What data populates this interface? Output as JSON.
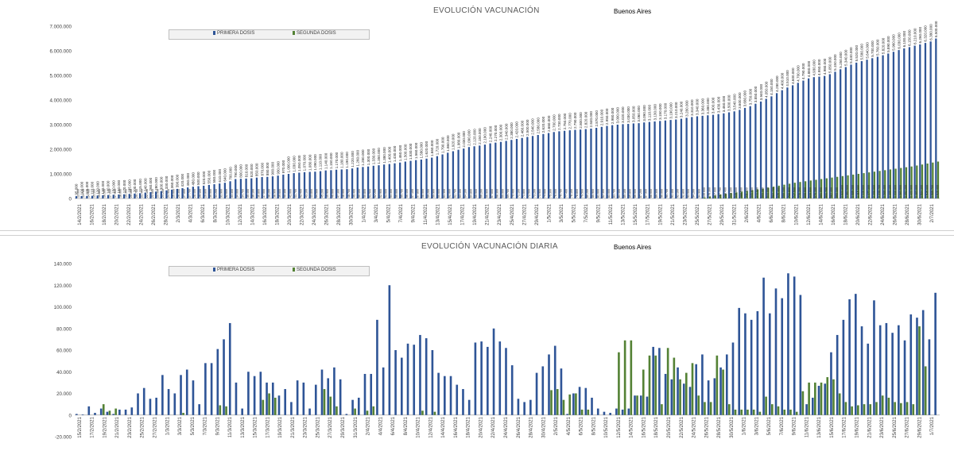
{
  "chart_data": [
    {
      "type": "bar",
      "title": "EVOLUCIÓN VACUNACIÓN",
      "subtitle": "Buenos Aires",
      "ylim": [
        0,
        7000000
      ],
      "yticks": [
        "0",
        "1.000.000",
        "2.000.000",
        "3.000.000",
        "4.000.000",
        "5.000.000",
        "6.000.000",
        "7.000.000"
      ],
      "x_start": "2021-02-14",
      "x_end": "2021-07-02",
      "xtick_labels": [
        "14/2/2021",
        "16/2/2021",
        "18/2/2021",
        "20/2/2021",
        "22/2/2021",
        "24/2/2021",
        "26/2/2021",
        "28/2/2021",
        "2/3/2021",
        "4/3/2021",
        "6/3/2021",
        "8/3/2021",
        "10/3/2021",
        "12/3/2021",
        "14/3/2021",
        "16/3/2021",
        "18/3/2021",
        "20/3/2021",
        "22/3/2021",
        "24/3/2021",
        "26/3/2021",
        "28/3/2021",
        "30/3/2021",
        "1/4/2021",
        "3/4/2021",
        "5/4/2021",
        "7/4/2021",
        "9/4/2021",
        "11/4/2021",
        "13/4/2021",
        "15/4/2021",
        "17/4/2021",
        "19/4/2021",
        "21/4/2021",
        "23/4/2021",
        "25/4/2021",
        "27/4/2021",
        "29/4/2021",
        "1/5/2021",
        "3/5/2021",
        "5/5/2021",
        "7/5/2021",
        "9/5/2021",
        "11/5/2021",
        "13/5/2021",
        "15/5/2021",
        "17/5/2021",
        "19/5/2021",
        "21/5/2021",
        "23/5/2021",
        "25/5/2021",
        "27/5/2021",
        "29/5/2021",
        "31/5/2021",
        "2/6/2021",
        "4/6/2021",
        "6/6/2021",
        "8/6/2021",
        "10/6/2021",
        "12/6/2021",
        "14/6/2021",
        "16/6/2021",
        "18/6/2021",
        "20/6/2021",
        "22/6/2021",
        "24/6/2021",
        "26/6/2021",
        "28/6/2021",
        "30/6/2021",
        "2/7/2021"
      ],
      "grid": false,
      "legend_position": "top-left",
      "series": [
        {
          "name": "PRIMERA DOSIS",
          "color": "#2f5597",
          "values": [
            95000,
            100000,
            105000,
            110000,
            120000,
            130000,
            140000,
            150000,
            160000,
            170000,
            185000,
            200000,
            215000,
            240000,
            260000,
            280000,
            300000,
            330000,
            360000,
            390000,
            420000,
            450000,
            480000,
            500000,
            520000,
            550000,
            580000,
            610000,
            640000,
            700000,
            790000,
            800000,
            810000,
            820000,
            850000,
            870000,
            880000,
            900000,
            930000,
            970000,
            1000000,
            1030000,
            1050000,
            1070000,
            1080000,
            1090000,
            1110000,
            1140000,
            1150000,
            1170000,
            1180000,
            1190000,
            1220000,
            1260000,
            1280000,
            1300000,
            1330000,
            1350000,
            1380000,
            1400000,
            1430000,
            1460000,
            1500000,
            1530000,
            1560000,
            1580000,
            1620000,
            1660000,
            1720000,
            1790000,
            1860000,
            1920000,
            1980000,
            2030000,
            2090000,
            2120000,
            2150000,
            2190000,
            2240000,
            2270000,
            2300000,
            2340000,
            2380000,
            2420000,
            2460000,
            2500000,
            2540000,
            2580000,
            2620000,
            2660000,
            2700000,
            2730000,
            2750000,
            2770000,
            2790000,
            2800000,
            2820000,
            2840000,
            2870000,
            2910000,
            2950000,
            2980000,
            3000000,
            3020000,
            3030000,
            3050000,
            3060000,
            3090000,
            3110000,
            3130000,
            3150000,
            3170000,
            3190000,
            3210000,
            3240000,
            3280000,
            3310000,
            3340000,
            3360000,
            3380000,
            3400000,
            3430000,
            3460000,
            3500000,
            3540000,
            3600000,
            3680000,
            3750000,
            3850000,
            3940000,
            4050000,
            4150000,
            4280000,
            4400000,
            4510000,
            4600000,
            4700000,
            4790000,
            4880000,
            4930000,
            4950000,
            4980000,
            5050000,
            5150000,
            5250000,
            5340000,
            5440000,
            5520000,
            5580000,
            5640000,
            5700000,
            5760000,
            5820000,
            5890000,
            5960000,
            6030000,
            6100000,
            6150000,
            6210000,
            6260000,
            6320000,
            6380000,
            6500000
          ]
        },
        {
          "name": "SEGUNDA DOSIS",
          "color": "#548235",
          "values": [
            0,
            0,
            0,
            0,
            0,
            0,
            0,
            0,
            0,
            0,
            0,
            0,
            0,
            0,
            0,
            0,
            0,
            0,
            0,
            0,
            0,
            0,
            0,
            0,
            0,
            0,
            0,
            0,
            0,
            0,
            0,
            0,
            0,
            0,
            0,
            0,
            0,
            0,
            0,
            0,
            0,
            0,
            0,
            0,
            0,
            0,
            0,
            0,
            0,
            0,
            0,
            0,
            0,
            0,
            0,
            0,
            0,
            0,
            0,
            0,
            0,
            0,
            0,
            0,
            0,
            0,
            0,
            0,
            0,
            0,
            0,
            0,
            0,
            0,
            0,
            0,
            0,
            0,
            0,
            0,
            0,
            0,
            0,
            0,
            0,
            0,
            0,
            0,
            0,
            0,
            0,
            0,
            0,
            0,
            0,
            0,
            0,
            0,
            0,
            0,
            0,
            0,
            0,
            0,
            0,
            0,
            0,
            0,
            0,
            0,
            0,
            0,
            0,
            0,
            0,
            0,
            0,
            0,
            40000,
            80000,
            120000,
            160000,
            190000,
            220000,
            250000,
            280000,
            310000,
            340000,
            370000,
            400000,
            440000,
            480000,
            520000,
            560000,
            600000,
            640000,
            670000,
            700000,
            730000,
            760000,
            790000,
            820000,
            850000,
            880000,
            910000,
            940000,
            970000,
            1000000,
            1030000,
            1060000,
            1090000,
            1120000,
            1150000,
            1180000,
            1210000,
            1240000,
            1270000,
            1300000,
            1340000,
            1380000,
            1420000,
            1460000,
            1500000
          ]
        }
      ]
    },
    {
      "type": "bar",
      "title": "EVOLUCIÓN VACUNACIÓN DIARIA",
      "subtitle": "Buenos Aires",
      "ylim": [
        -20000,
        140000
      ],
      "yticks": [
        "-20.000",
        "0",
        "20.000",
        "40.000",
        "60.000",
        "80.000",
        "100.000",
        "120.000",
        "140.000"
      ],
      "x_start": "2021-02-15",
      "x_end": "2021-07-02",
      "xtick_labels": [
        "15/2/2021",
        "17/2/2021",
        "19/2/2021",
        "21/2/2021",
        "23/2/2021",
        "25/2/2021",
        "27/2/2021",
        "1/3/2021",
        "3/3/2021",
        "5/3/2021",
        "7/3/2021",
        "9/3/2021",
        "11/3/2021",
        "13/3/2021",
        "15/3/2021",
        "17/3/2021",
        "19/3/2021",
        "21/3/2021",
        "23/3/2021",
        "25/3/2021",
        "27/3/2021",
        "29/3/2021",
        "31/3/2021",
        "2/4/2021",
        "4/4/2021",
        "6/4/2021",
        "8/4/2021",
        "10/4/2021",
        "12/4/2021",
        "14/4/2021",
        "16/4/2021",
        "18/4/2021",
        "20/4/2021",
        "22/4/2021",
        "24/4/2021",
        "26/4/2021",
        "28/4/2021",
        "30/4/2021",
        "2/5/2021",
        "4/5/2021",
        "6/5/2021",
        "8/5/2021",
        "10/5/2021",
        "12/5/2021",
        "14/5/2021",
        "16/5/2021",
        "18/5/2021",
        "20/5/2021",
        "22/5/2021",
        "24/5/2021",
        "26/5/2021",
        "28/5/2021",
        "30/5/2021",
        "1/6/2021",
        "3/6/2021",
        "5/6/2021",
        "7/6/2021",
        "9/6/2021",
        "11/6/2021",
        "13/6/2021",
        "15/6/2021",
        "17/6/2021",
        "19/6/2021",
        "21/6/2021",
        "23/6/2021",
        "25/6/2021",
        "27/6/2021",
        "29/6/2021",
        "1/7/2021"
      ],
      "grid": false,
      "legend_position": "top-left",
      "series": [
        {
          "name": "PRIMERA DOSIS",
          "color": "#2f5597",
          "values": [
            1000,
            500,
            8000,
            2000,
            6000,
            3000,
            1000,
            5000,
            5000,
            7000,
            20000,
            25000,
            15000,
            16000,
            37000,
            24000,
            20000,
            37000,
            42000,
            32000,
            10000,
            48000,
            48000,
            61000,
            70000,
            85000,
            30000,
            6000,
            40000,
            36000,
            40000,
            30000,
            30000,
            18000,
            24000,
            12000,
            32000,
            30000,
            6000,
            28000,
            42000,
            34000,
            44000,
            33000,
            1000,
            14000,
            16000,
            38000,
            38000,
            88000,
            44000,
            120000,
            60000,
            53000,
            66000,
            65000,
            74000,
            71000,
            60000,
            39000,
            36000,
            36000,
            28000,
            24000,
            14000,
            67000,
            68000,
            63000,
            80000,
            68000,
            62000,
            46000,
            15000,
            12000,
            14000,
            39000,
            45000,
            56000,
            64000,
            43000,
            1000,
            20000,
            26000,
            25000,
            16000,
            6000,
            3000,
            2000,
            6000,
            5000,
            6000,
            18000,
            18000,
            17000,
            63000,
            62000,
            38000,
            33000,
            44000,
            29000,
            26000,
            47000,
            56000,
            32000,
            34000,
            44000,
            56000,
            67000,
            99000,
            94000,
            88000,
            96000,
            127000,
            94000,
            117000,
            108000,
            131000,
            128000,
            111000,
            10000,
            16000,
            27000,
            29000,
            58000,
            74000,
            88000,
            107000,
            112000,
            82000,
            66000,
            106000,
            83000,
            85000,
            76000,
            83000,
            69000,
            93000,
            90000,
            97000,
            70000,
            113000
          ]
        },
        {
          "name": "SEGUNDA DOSIS",
          "color": "#548235",
          "values": [
            0,
            0,
            0,
            0,
            10000,
            4000,
            6000,
            0,
            0,
            0,
            0,
            0,
            0,
            0,
            0,
            0,
            0,
            2000,
            0,
            0,
            0,
            0,
            0,
            9000,
            8000,
            0,
            0,
            0,
            0,
            0,
            14000,
            20000,
            16000,
            0,
            0,
            0,
            0,
            0,
            0,
            0,
            24000,
            17000,
            8000,
            0,
            0,
            6000,
            0,
            4000,
            8000,
            0,
            0,
            0,
            0,
            0,
            0,
            0,
            4000,
            0,
            3000,
            0,
            0,
            0,
            0,
            0,
            0,
            0,
            0,
            0,
            0,
            0,
            0,
            0,
            0,
            0,
            0,
            0,
            0,
            23000,
            24000,
            14000,
            19000,
            20000,
            5000,
            5000,
            0,
            0,
            0,
            0,
            58000,
            69000,
            69000,
            18000,
            42000,
            55000,
            55000,
            10000,
            62000,
            53000,
            33000,
            39000,
            48000,
            18000,
            12000,
            12000,
            55000,
            42000,
            10000,
            5000,
            5000,
            5000,
            5000,
            3000,
            17000,
            10000,
            8000,
            5000,
            5000,
            3000,
            22000,
            30000,
            30000,
            30000,
            35000,
            33000,
            20000,
            12000,
            8000,
            9000,
            10000,
            10000,
            12000,
            18000,
            16000,
            12000,
            11000,
            12000,
            10000,
            82000,
            45000
          ]
        }
      ]
    }
  ]
}
